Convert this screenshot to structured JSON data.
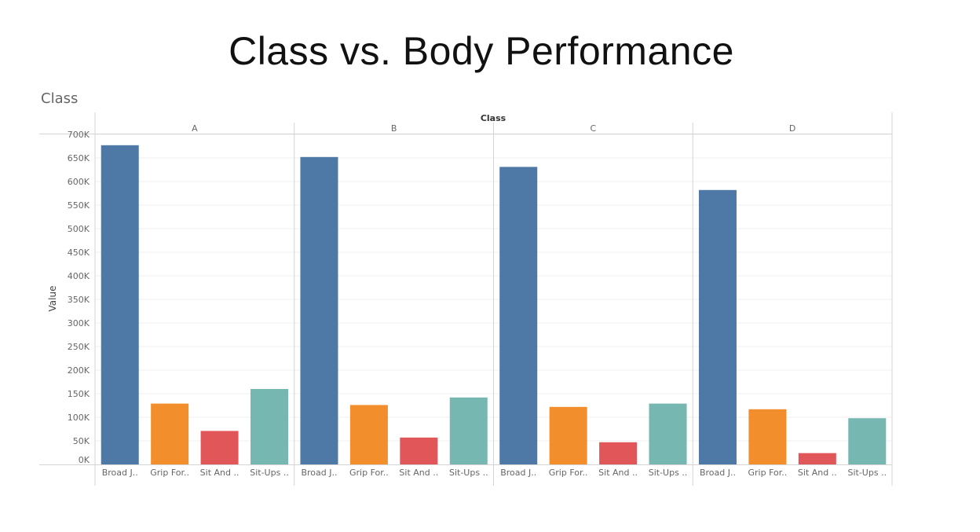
{
  "slide_title": "Class vs. Body Performance",
  "sheet_title": "Class",
  "chart_data": {
    "type": "bar",
    "column_header": "Class",
    "panels": [
      "A",
      "B",
      "C",
      "D"
    ],
    "categories": [
      "Broad J..",
      "Grip For..",
      "Sit And ..",
      "Sit-Ups .."
    ],
    "category_colors": [
      "#4e79a7",
      "#f28e2b",
      "#e15759",
      "#76b7b2"
    ],
    "values": {
      "A": [
        677000,
        129000,
        71000,
        160000
      ],
      "B": [
        652000,
        126000,
        57000,
        142000
      ],
      "C": [
        631000,
        122000,
        47000,
        129000
      ],
      "D": [
        582000,
        117000,
        24000,
        98000
      ]
    },
    "ylabel": "Value",
    "ylim": [
      0,
      700000
    ],
    "yticks": [
      "0K",
      "50K",
      "100K",
      "150K",
      "200K",
      "250K",
      "300K",
      "350K",
      "400K",
      "450K",
      "500K",
      "550K",
      "600K",
      "650K",
      "700K"
    ],
    "grid": true
  }
}
